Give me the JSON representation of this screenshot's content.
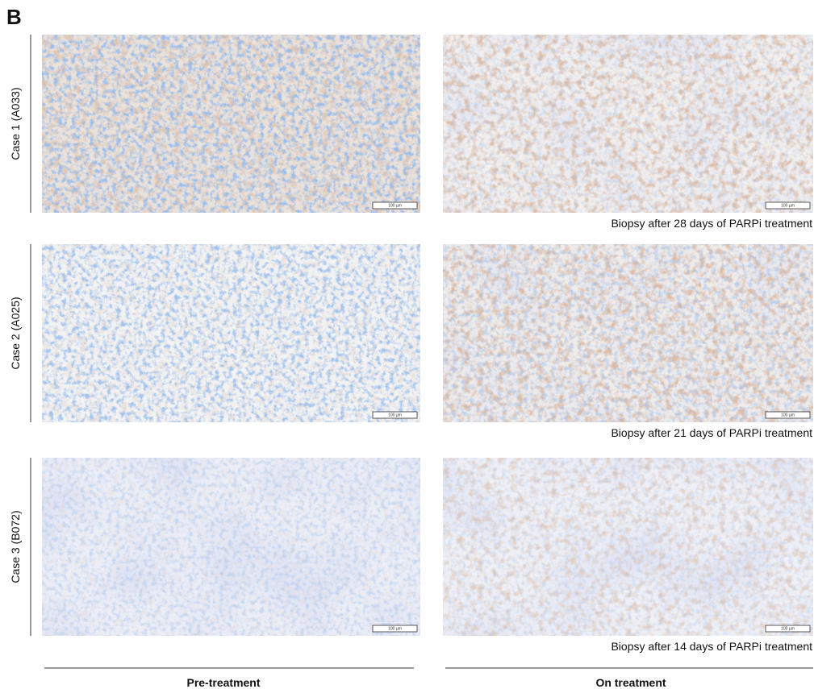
{
  "panel_label": "B",
  "rows": [
    {
      "label": "Case 1 (A033)",
      "pre_scale": "100 µm",
      "on_scale": "100 µm",
      "caption": "Biopsy after 28 days of PARPi treatment"
    },
    {
      "label": "Case 2 (A025)",
      "pre_scale": "100 µm",
      "on_scale": "100 µm",
      "caption": "Biopsy after 21 days of PARPi treatment"
    },
    {
      "label": "Case 3 (B072)",
      "pre_scale": "100 µm",
      "on_scale": "100 µm",
      "caption": "Biopsy after 14 days of PARPi treatment"
    }
  ],
  "columns": [
    "Pre-treatment",
    "On treatment"
  ]
}
